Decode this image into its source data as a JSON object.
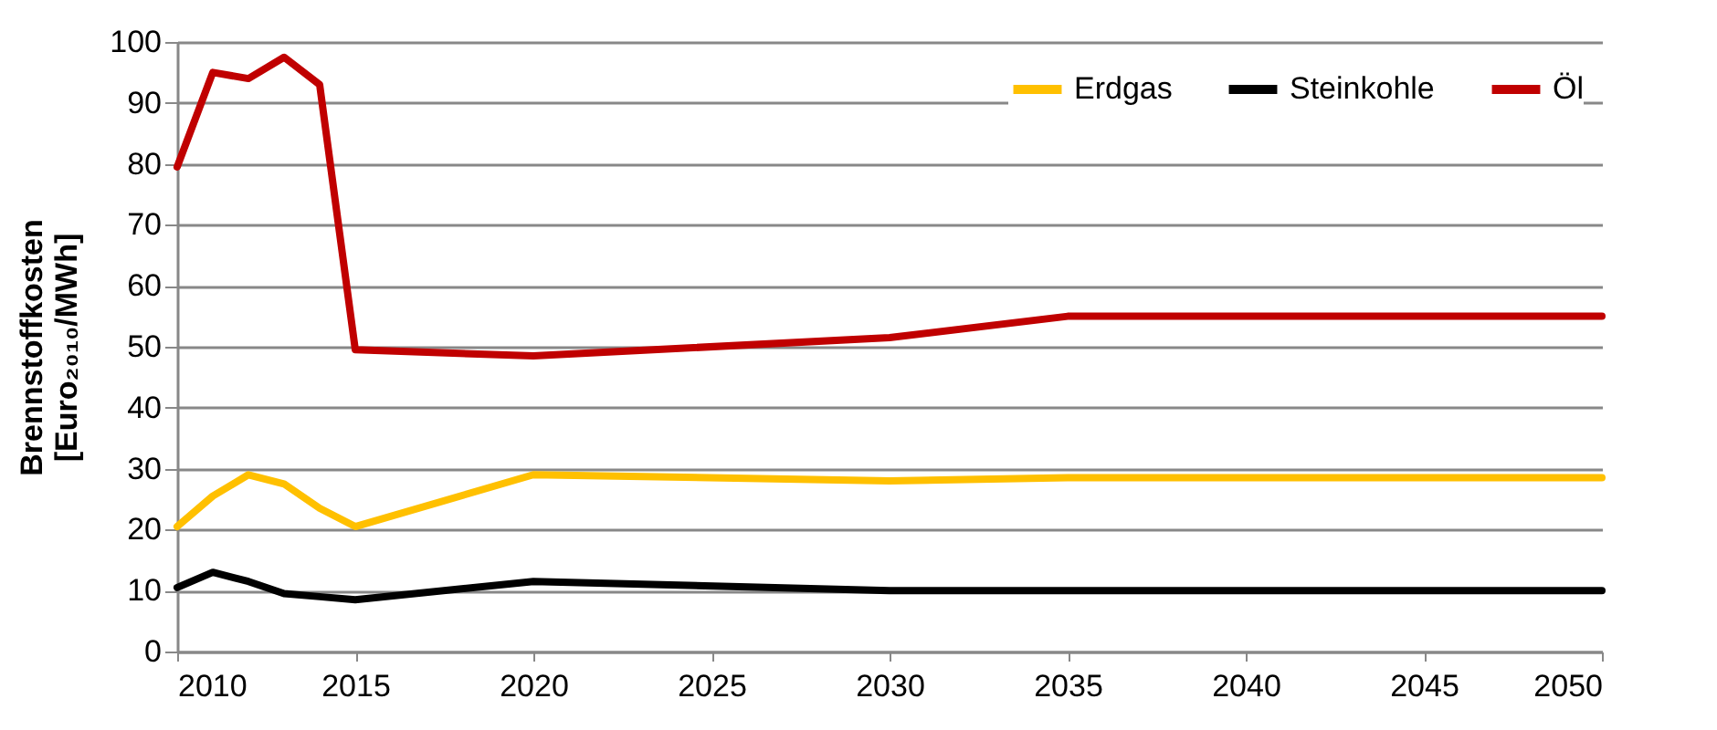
{
  "chart_data": {
    "type": "line",
    "ylabel": "Brennstoffkosten\n[Euro₂₀₁₀/MWh]",
    "xlim": [
      2010,
      2050
    ],
    "xticks": [
      2010,
      2015,
      2020,
      2025,
      2030,
      2035,
      2040,
      2045,
      2050
    ],
    "ylim": [
      0,
      100
    ],
    "yticks": [
      0,
      10,
      20,
      30,
      40,
      50,
      60,
      70,
      80,
      90,
      100
    ],
    "grid": "y",
    "legend": "top right",
    "marker": "none",
    "line_style": "solid",
    "series": [
      {
        "name": "Erdgas",
        "color": "#ffc000",
        "x": [
          2010,
          2011,
          2012,
          2013,
          2014,
          2015,
          2020,
          2030,
          2035,
          2050
        ],
        "values": [
          20.5,
          25.5,
          29,
          27.5,
          23.5,
          20.5,
          29,
          28,
          28.5,
          28.5
        ]
      },
      {
        "name": "Steinkohle",
        "color": "#000000",
        "x": [
          2010,
          2011,
          2012,
          2013,
          2014,
          2015,
          2020,
          2030,
          2050
        ],
        "values": [
          10.5,
          13,
          11.5,
          9.5,
          9,
          8.5,
          11.5,
          10,
          10
        ]
      },
      {
        "name": "Öl",
        "color": "#c00000",
        "x": [
          2010,
          2011,
          2012,
          2013,
          2014,
          2015,
          2020,
          2030,
          2035,
          2050
        ],
        "values": [
          79.5,
          95,
          94,
          97.5,
          93,
          49.5,
          48.5,
          51.5,
          55,
          55
        ]
      }
    ]
  }
}
